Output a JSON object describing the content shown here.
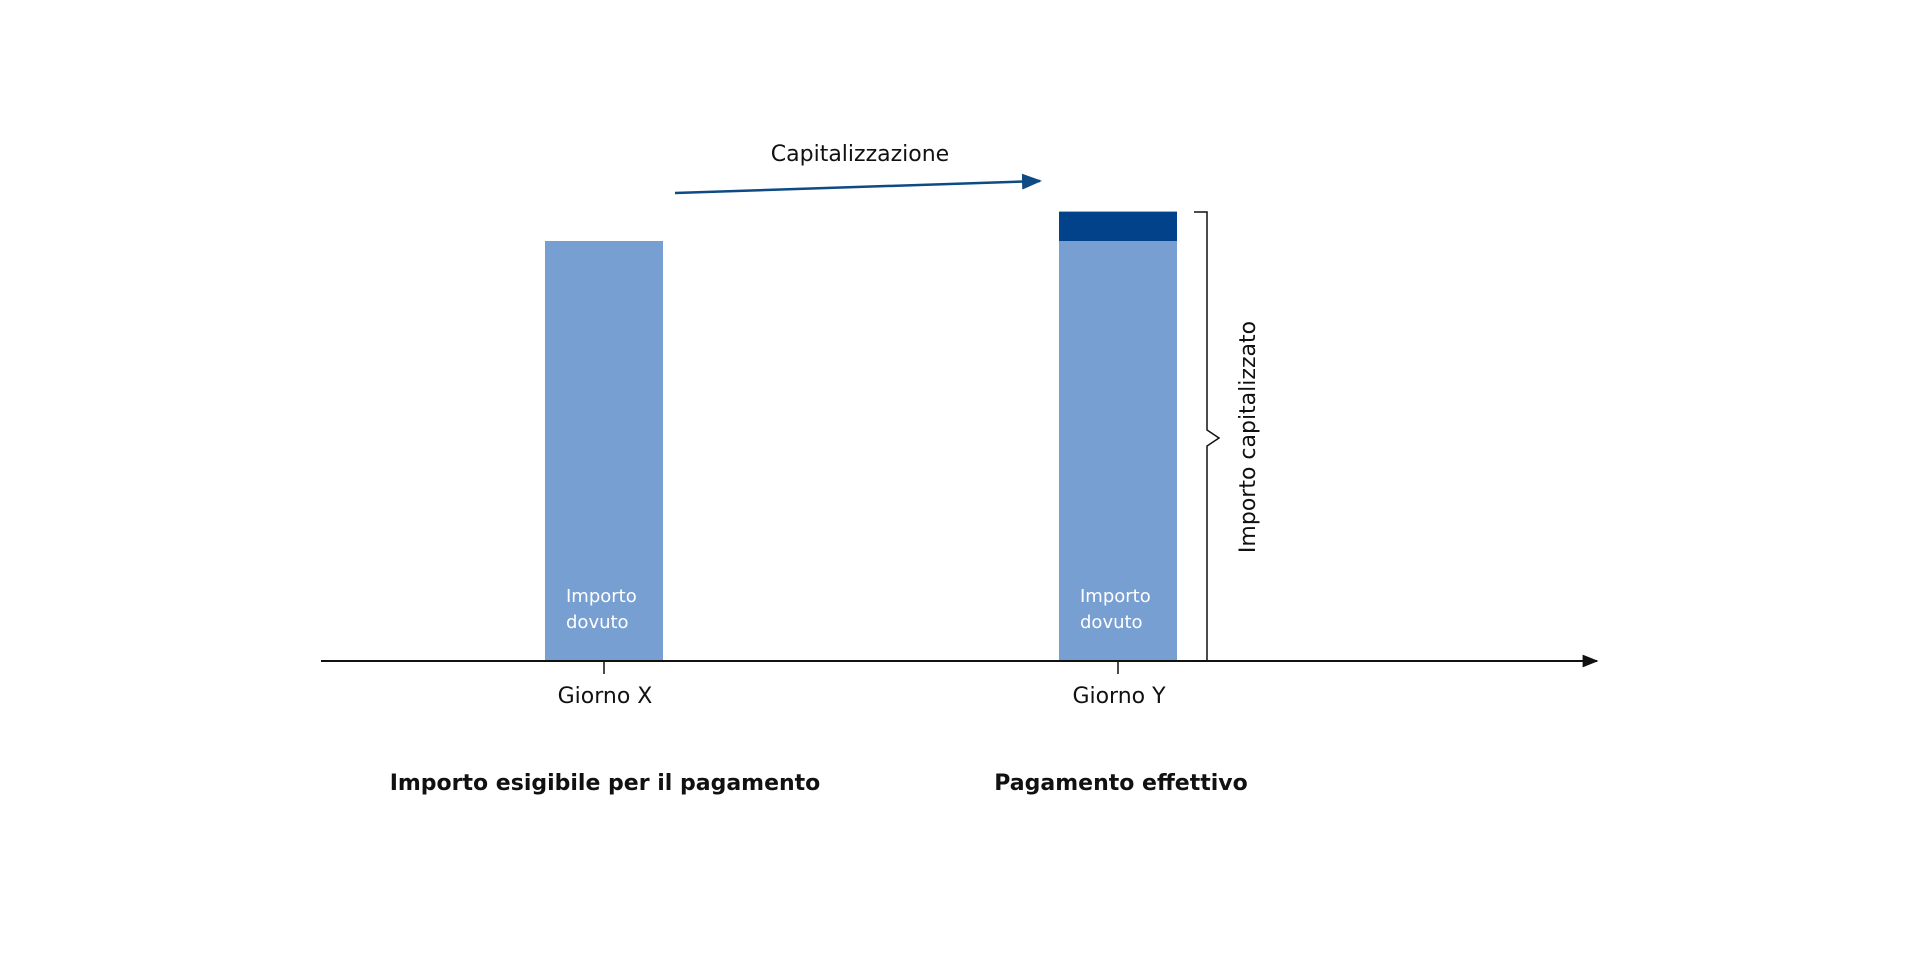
{
  "colors": {
    "bar_light": "#789fd2",
    "bar_dark": "#01428a",
    "arrow": "#0e4a84",
    "axis": "#111111",
    "text": "#111111",
    "bar_text": "#ffffff"
  },
  "diagram": {
    "arrow_label": "Capitalizzazione",
    "brace_label": "Importo capitalizzato",
    "bars": [
      {
        "id": "giorno-x",
        "tick_label": "Giorno X",
        "inner_label_line1": "Importo",
        "inner_label_line2": "dovuto",
        "caption": "Importo esigibile per il pagamento",
        "base_value": 1.0,
        "capitalized_value": 0
      },
      {
        "id": "giorno-y",
        "tick_label": "Giorno Y",
        "inner_label_line1": "Importo",
        "inner_label_line2": "dovuto",
        "caption": "Pagamento effettivo",
        "base_value": 1.0,
        "capitalized_value": 0.07
      }
    ]
  }
}
